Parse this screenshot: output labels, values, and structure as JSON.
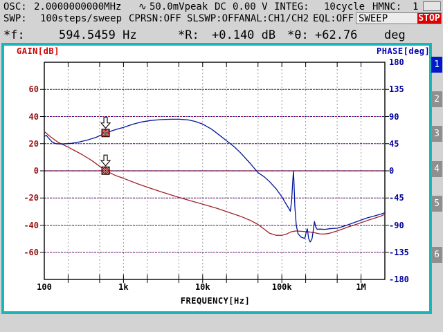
{
  "header": {
    "row1": {
      "osc_label": "OSC:",
      "osc_value": "2.0000000000MHz",
      "ac_symbol": "∿",
      "ac_value": "50.0mVpeak",
      "dc_label": "DC",
      "dc_value": "0.00 V",
      "integ_label": "INTEG:",
      "integ_value": "10cycle",
      "hmnc_label": "HMNC:",
      "hmnc_value": "1"
    },
    "row2": {
      "swp_label": "SWP:",
      "swp_value": "100steps/sweep",
      "cprsn": "CPRSN:OFF",
      "slswp": "SLSWP:OFF",
      "anal": "ANAL:CH1/CH2",
      "eql": "EQL:OFF",
      "mode": "SWEEP",
      "status": "STOP",
      "status_color": "#dd0000"
    },
    "row3": {
      "f_label": "*f:",
      "f_value": "594.5459 Hz",
      "r_label": "*R:",
      "r_value": "+0.140 dB",
      "theta_label": "*θ:",
      "theta_value": "+62.76",
      "theta_unit": "deg"
    }
  },
  "softkeys": {
    "items": [
      {
        "label": "1",
        "active": true
      },
      {
        "label": "2",
        "active": false
      },
      {
        "label": "3",
        "active": false
      },
      {
        "label": "4",
        "active": false
      },
      {
        "label": "5",
        "active": false
      },
      {
        "label": "6",
        "active": false
      }
    ]
  },
  "chart_data": {
    "type": "line",
    "title": "Bode plot (gain/phase frequency response)",
    "x_axis": {
      "label": "FREQUENCY[Hz]",
      "scale": "log",
      "min": 100,
      "max": 2000000,
      "tick_values": [
        100,
        1000,
        10000,
        100000,
        1000000
      ],
      "tick_labels": [
        "100",
        "1k",
        "10k",
        "100k",
        "1M"
      ],
      "grid_values": [
        200,
        500,
        1000,
        2000,
        5000,
        10000,
        20000,
        50000,
        100000,
        200000,
        500000,
        1000000
      ]
    },
    "y_left": {
      "label": "GAIN[dB]",
      "min": -80,
      "max": 80,
      "step": 20,
      "tick_values": [
        60,
        40,
        20,
        0,
        -20,
        -40,
        -60
      ],
      "tick_labels": [
        "60",
        "40",
        "20",
        "0",
        "-20",
        "-40",
        "-60"
      ],
      "label_color": "#cc0000",
      "tick_color": "#991111"
    },
    "y_right": {
      "label": "PHASE[deg]",
      "min": -180,
      "max": 180,
      "step": 45,
      "tick_values": [
        180,
        135,
        90,
        45,
        0,
        -45,
        -90,
        -135,
        -180
      ],
      "tick_labels": [
        "180",
        "135",
        "90",
        "45",
        "0",
        "-45",
        "-90",
        "-135",
        "-180"
      ],
      "label_color": "#0000bb",
      "tick_color": "#000099"
    },
    "grid": {
      "h_dash_blue": "#101090",
      "h_dash_red": "#a01040",
      "zero_line": "#8a1030",
      "v_dash": "#9a9a9a"
    },
    "series": [
      {
        "name": "GAIN",
        "axis": "left",
        "color": "#a02028",
        "points": [
          [
            100,
            29
          ],
          [
            120,
            25
          ],
          [
            150,
            21
          ],
          [
            200,
            17.5
          ],
          [
            300,
            12
          ],
          [
            400,
            7.5
          ],
          [
            594.5459,
            0.14
          ],
          [
            800,
            -3.5
          ],
          [
            1000,
            -5.5
          ],
          [
            1500,
            -9.5
          ],
          [
            2000,
            -12
          ],
          [
            3000,
            -15.5
          ],
          [
            5000,
            -19.5
          ],
          [
            7000,
            -22
          ],
          [
            10000,
            -24.5
          ],
          [
            15000,
            -27.5
          ],
          [
            20000,
            -30
          ],
          [
            30000,
            -33.5
          ],
          [
            40000,
            -36.5
          ],
          [
            50000,
            -39.5
          ],
          [
            60000,
            -43
          ],
          [
            70000,
            -46
          ],
          [
            85000,
            -47.5
          ],
          [
            100000,
            -47.5
          ],
          [
            115000,
            -46.5
          ],
          [
            130000,
            -45
          ],
          [
            150000,
            -44.3
          ],
          [
            180000,
            -44.6
          ],
          [
            220000,
            -45
          ],
          [
            260000,
            -45.6
          ],
          [
            300000,
            -46.4
          ],
          [
            350000,
            -46.5
          ],
          [
            400000,
            -46
          ],
          [
            500000,
            -44.3
          ],
          [
            600000,
            -42.6
          ],
          [
            700000,
            -41.2
          ],
          [
            850000,
            -39.6
          ],
          [
            1000000,
            -38.2
          ],
          [
            1200000,
            -36.6
          ],
          [
            1500000,
            -34.8
          ],
          [
            1800000,
            -33.2
          ],
          [
            2000000,
            -32
          ]
        ]
      },
      {
        "name": "PHASE",
        "axis": "right",
        "color": "#00149b",
        "points": [
          [
            100,
            57
          ],
          [
            106,
            59
          ],
          [
            112,
            55
          ],
          [
            125,
            48
          ],
          [
            140,
            45
          ],
          [
            170,
            44.5
          ],
          [
            220,
            45.5
          ],
          [
            280,
            48
          ],
          [
            350,
            51
          ],
          [
            450,
            55.5
          ],
          [
            594.5459,
            62.76
          ],
          [
            700,
            66
          ],
          [
            850,
            69.5
          ],
          [
            1000,
            72
          ],
          [
            1300,
            77
          ],
          [
            1700,
            81
          ],
          [
            2200,
            83.5
          ],
          [
            3000,
            85
          ],
          [
            4000,
            85.5
          ],
          [
            5000,
            85.5
          ],
          [
            6500,
            84.5
          ],
          [
            8000,
            82
          ],
          [
            10000,
            77.5
          ],
          [
            13000,
            69
          ],
          [
            16000,
            60
          ],
          [
            20000,
            50
          ],
          [
            25000,
            40
          ],
          [
            30000,
            30
          ],
          [
            40000,
            12
          ],
          [
            50000,
            -3
          ],
          [
            60000,
            -10
          ],
          [
            70000,
            -18
          ],
          [
            85000,
            -30
          ],
          [
            100000,
            -43
          ],
          [
            112000,
            -54
          ],
          [
            122000,
            -62
          ],
          [
            128000,
            -67
          ],
          [
            133000,
            -50
          ],
          [
            137000,
            -20
          ],
          [
            140000,
            -1
          ],
          [
            142000,
            -15
          ],
          [
            146000,
            -60
          ],
          [
            152000,
            -90
          ],
          [
            160000,
            -104
          ],
          [
            175000,
            -110
          ],
          [
            195000,
            -112
          ],
          [
            205000,
            -100
          ],
          [
            210000,
            -96
          ],
          [
            218000,
            -112
          ],
          [
            228000,
            -118
          ],
          [
            240000,
            -113
          ],
          [
            252000,
            -95
          ],
          [
            258000,
            -84
          ],
          [
            268000,
            -93
          ],
          [
            280000,
            -97
          ],
          [
            300000,
            -96.5
          ],
          [
            350000,
            -97
          ],
          [
            400000,
            -96
          ],
          [
            500000,
            -95
          ],
          [
            600000,
            -92
          ],
          [
            700000,
            -89
          ],
          [
            850000,
            -85
          ],
          [
            1000000,
            -81.5
          ],
          [
            1200000,
            -78
          ],
          [
            1500000,
            -74.5
          ],
          [
            1800000,
            -71.5
          ],
          [
            2000000,
            -69.5
          ]
        ]
      }
    ],
    "markers": [
      {
        "series": "PHASE",
        "freq": 594.5459,
        "value": 62.76,
        "box_color": "#cc1a1a"
      },
      {
        "series": "GAIN",
        "freq": 594.5459,
        "value": 0.14,
        "box_color": "#cc1a1a"
      }
    ],
    "legend": "none"
  }
}
